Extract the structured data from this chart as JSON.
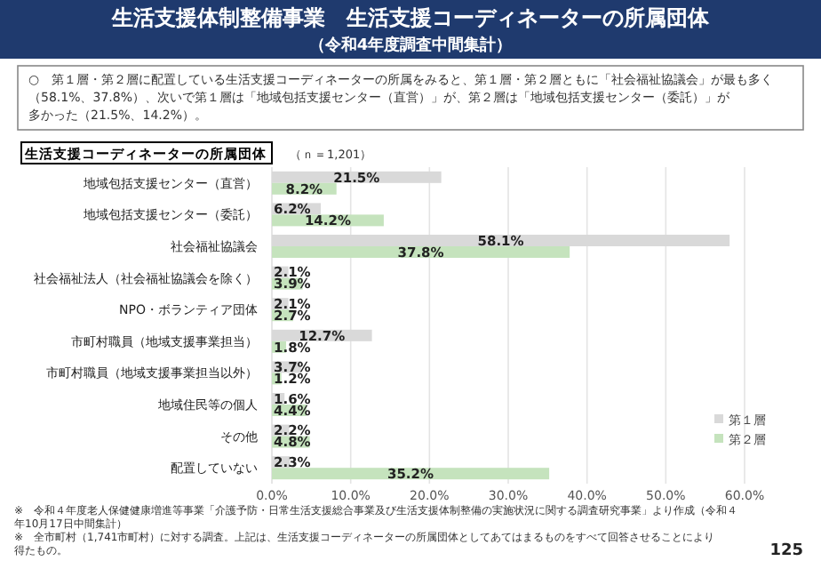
{
  "chart_data": {
    "type": "bar",
    "orientation": "horizontal",
    "title": "生活支援体制整備事業　生活支援コーディネーターの所属団体",
    "subtitle": "（令和4年度調査中間集計）",
    "categories": [
      "地域包括支援センター（直営）",
      "地域包括支援センター（委託）",
      "社会福祉協議会",
      "社会福祉法人（社会福祉協議会を除く）",
      "NPO・ボランティア団体",
      "市町村職員（地域支援事業担当）",
      "市町村職員（地域支援事業担当以外）",
      "地域住民等の個人",
      "その他",
      "配置していない"
    ],
    "series": [
      {
        "name": "第１層",
        "color": "#d9d9d9",
        "values": [
          21.5,
          6.2,
          58.1,
          2.1,
          2.1,
          12.7,
          3.7,
          1.6,
          2.2,
          2.3
        ],
        "value_labels": [
          "21.5%",
          "6.2%",
          "58.1%",
          "2.1%",
          "2.1%",
          "12.7%",
          "3.7%",
          "1.6%",
          "2.2%",
          "2.3%"
        ]
      },
      {
        "name": "第２層",
        "color": "#c5e3bd",
        "values": [
          8.2,
          14.2,
          37.8,
          3.9,
          2.7,
          1.8,
          1.2,
          4.4,
          4.8,
          35.2
        ],
        "value_labels": [
          "8.2%",
          "14.2%",
          "37.8%",
          "3.9%",
          "2.7%",
          "1.8%",
          "1.2%",
          "4.4%",
          "4.8%",
          "35.2%"
        ]
      }
    ],
    "xlim": [
      0,
      60
    ],
    "xticks": [
      {
        "value": 0,
        "label": "0.0%"
      },
      {
        "value": 10,
        "label": "10.0%"
      },
      {
        "value": 20,
        "label": "20.0%"
      },
      {
        "value": 30,
        "label": "30.0%"
      },
      {
        "value": 40,
        "label": "40.0%"
      },
      {
        "value": 50,
        "label": "50.0%"
      },
      {
        "value": 60,
        "label": "60.0%"
      }
    ],
    "grid": "x",
    "legend": "bottom right",
    "annotations": [
      "○　第１層・第２層に配置している生活支援コーディネーターの所属をみると、第１層・第２層ともに「社会福祉協議会」が最も多く（58.1%、37.8%）、次いで第１層は「地域包括支援センター（直営）」が、第２層は「地域包括支援センター（委託）」が多かった（21.5%、14.2%）。",
      "生活支援コーディネーターの所属団体",
      "（ｎ＝1,201）",
      "※　令和４年度老人保健健康増進等事業「介護予防・日常生活支援総合事業及び生活支援体制整備の実施状況に関する調査研究事業」より作成（令和４年10月17日中間集計）",
      "※　全市町村（1,741市町村）に対する調査。上記は、生活支援コーディネーターの所属団体としてあてはまるものをすべて回答させることにより得たもの。",
      "125"
    ]
  }
}
